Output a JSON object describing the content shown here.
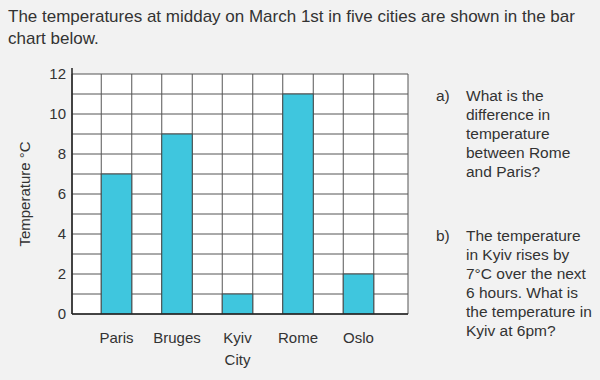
{
  "intro": "The temperatures at midday on March 1st in five cities are shown in the bar chart below.",
  "questions": [
    {
      "label": "a)",
      "text": "What is the difference in temperature between Rome and Paris?"
    },
    {
      "label": "b)",
      "text": "The temperature in Kyiv rises by 7°C over the next 6 hours. What is the temperature in Kyiv at 6pm?"
    }
  ],
  "chart_data": {
    "type": "bar",
    "x_label": "City",
    "y_label": "Temperature °C",
    "categories": [
      "Paris",
      "Bruges",
      "Kyiv",
      "Rome",
      "Oslo"
    ],
    "values": [
      7,
      9,
      1,
      11,
      2
    ],
    "color": "#3fc6de",
    "ylim": [
      0,
      12
    ],
    "yticks": [
      0,
      2,
      4,
      6,
      8,
      10,
      12
    ],
    "grid": true
  }
}
